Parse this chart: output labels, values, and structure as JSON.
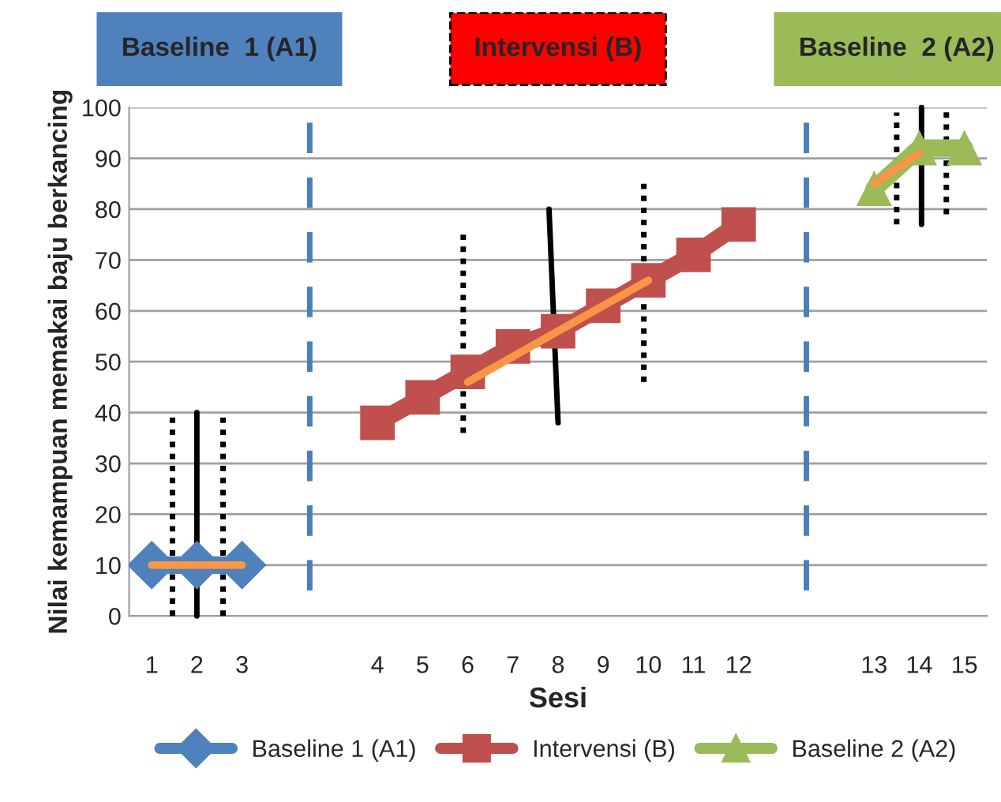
{
  "chart_data": {
    "type": "line",
    "xlabel": "Sesi",
    "ylabel": "Nilai kemampuan memakai baju berkancing",
    "annotations": [
      "Baseline  1 (A1)",
      "Intervensi (B)",
      "Baseline  2 (A2)"
    ],
    "categories": [
      "1",
      "2",
      "3",
      null,
      null,
      "4",
      "5",
      "6",
      "7",
      "8",
      "9",
      "10",
      "11",
      "12",
      null,
      null,
      "13",
      "14",
      "15"
    ],
    "ylim": [
      0,
      100
    ],
    "yticks": [
      0,
      10,
      20,
      30,
      40,
      50,
      60,
      70,
      80,
      90,
      100
    ],
    "grid": "y",
    "legend": "bottom",
    "series": [
      {
        "name": "Baseline 1 (A1)",
        "color": "#4f81bd",
        "marker": "diamond",
        "values": [
          10,
          10,
          10,
          null,
          null,
          null,
          null,
          null,
          null,
          null,
          null,
          null,
          null,
          null,
          null,
          null,
          null,
          null,
          null
        ]
      },
      {
        "name": "Intervensi (B)",
        "color": "#c0504d",
        "marker": "square",
        "values": [
          null,
          null,
          null,
          null,
          null,
          38,
          43,
          48,
          53,
          56,
          61,
          66,
          71,
          77,
          null,
          null,
          null,
          null,
          null
        ]
      },
      {
        "name": "Baseline 2 (A2)",
        "color": "#9bbb59",
        "marker": "triangle",
        "values": [
          null,
          null,
          null,
          null,
          null,
          null,
          null,
          null,
          null,
          null,
          null,
          null,
          null,
          null,
          null,
          null,
          84,
          92,
          92
        ]
      },
      {
        "color": "#f79646",
        "values": [
          10,
          10,
          10,
          null,
          null,
          null,
          null,
          null,
          null,
          null,
          null,
          null,
          null,
          null,
          null,
          null,
          null,
          null,
          null
        ]
      },
      {
        "color": "#f79646",
        "values": [
          null,
          null,
          null,
          null,
          null,
          null,
          null,
          46,
          51,
          56,
          61,
          66,
          null,
          null,
          null,
          null,
          null,
          null,
          null
        ]
      },
      {
        "color": "#f79646",
        "values": [
          null,
          null,
          null,
          null,
          null,
          null,
          null,
          null,
          null,
          null,
          null,
          null,
          null,
          null,
          null,
          null,
          85,
          91,
          null
        ]
      }
    ]
  }
}
